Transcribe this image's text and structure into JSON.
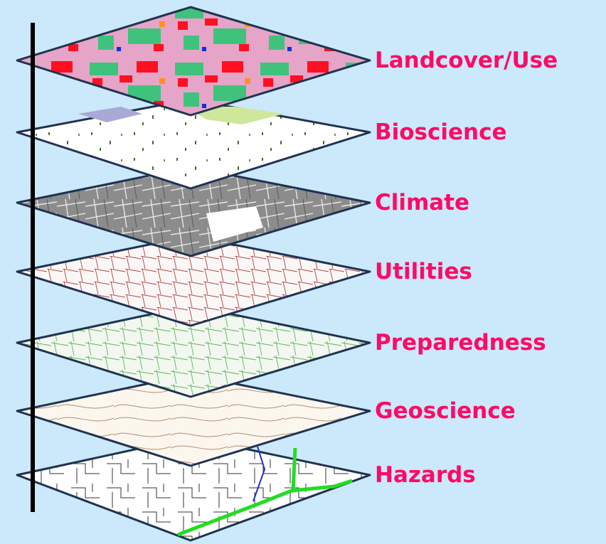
{
  "colors": {
    "background": "#cce8fb",
    "label": "#ff0a64",
    "edge": "#1f3350",
    "axis": "#000000"
  },
  "layers": [
    {
      "name": "Landcover/Use",
      "theme": "landcover"
    },
    {
      "name": "Bioscience",
      "theme": "bioscience"
    },
    {
      "name": "Climate",
      "theme": "climate"
    },
    {
      "name": "Utilities",
      "theme": "utilities"
    },
    {
      "name": "Preparedness",
      "theme": "preparedness"
    },
    {
      "name": "Geoscience",
      "theme": "geoscience"
    },
    {
      "name": "Hazards",
      "theme": "hazards"
    }
  ]
}
